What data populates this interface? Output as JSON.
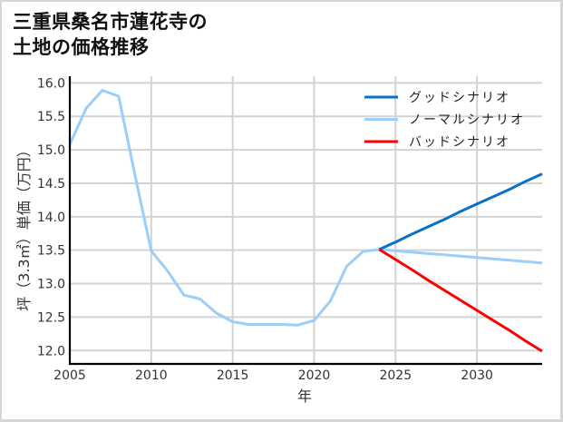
{
  "title": {
    "line1": "三重県桑名市蓮花寺の",
    "line2": "土地の価格推移"
  },
  "chart_data": {
    "type": "line",
    "title": "三重県桑名市蓮花寺の土地の価格推移",
    "xlabel": "年",
    "ylabel": "坪（3.3㎡）単価（万円）",
    "xlim": [
      2005,
      2034
    ],
    "ylim": [
      11.8,
      16.1
    ],
    "xticks": [
      2005,
      2010,
      2015,
      2020,
      2025,
      2030
    ],
    "yticks": [
      12.0,
      12.5,
      13.0,
      13.5,
      14.0,
      14.5,
      15.0,
      15.5,
      16.0
    ],
    "ytick_labels": [
      "12.0",
      "12.5",
      "13.0",
      "13.5",
      "14.0",
      "14.5",
      "15.0",
      "15.5",
      "16.0"
    ],
    "grid": true,
    "grid_color": "#d3d3d3",
    "legend_position": "upper right",
    "series": [
      {
        "name": "ノーマルシナリオ",
        "key": "normal",
        "color": "#9ccefa",
        "x": [
          2005,
          2006,
          2007,
          2008,
          2009,
          2010,
          2011,
          2012,
          2013,
          2014,
          2015,
          2016,
          2017,
          2018,
          2019,
          2020,
          2021,
          2022,
          2023,
          2024,
          2025,
          2026,
          2027,
          2028,
          2029,
          2030,
          2031,
          2032,
          2033,
          2034
        ],
        "values": [
          15.08,
          15.62,
          15.89,
          15.8,
          14.62,
          13.49,
          13.19,
          12.83,
          12.77,
          12.56,
          12.43,
          12.39,
          12.39,
          12.39,
          12.38,
          12.45,
          12.74,
          13.26,
          13.48,
          13.51,
          13.49,
          13.47,
          13.45,
          13.43,
          13.41,
          13.39,
          13.37,
          13.35,
          13.33,
          13.31
        ]
      },
      {
        "name": "グッドシナリオ",
        "key": "good",
        "color": "#0a72c6",
        "x": [
          2024,
          2025,
          2026,
          2027,
          2028,
          2029,
          2030,
          2031,
          2032,
          2033,
          2034
        ],
        "values": [
          13.51,
          13.62,
          13.74,
          13.85,
          13.96,
          14.08,
          14.19,
          14.3,
          14.41,
          14.53,
          14.64
        ]
      },
      {
        "name": "バッドシナリオ",
        "key": "bad",
        "color": "#ff0000",
        "x": [
          2024,
          2025,
          2026,
          2027,
          2028,
          2029,
          2030,
          2031,
          2032,
          2033,
          2034
        ],
        "values": [
          13.51,
          13.36,
          13.21,
          13.05,
          12.9,
          12.75,
          12.6,
          12.45,
          12.3,
          12.14,
          11.99
        ]
      }
    ],
    "legend": [
      {
        "label": "グッドシナリオ",
        "color": "#0a72c6"
      },
      {
        "label": "ノーマルシナリオ",
        "color": "#9ccefa"
      },
      {
        "label": "バッドシナリオ",
        "color": "#ff0000"
      }
    ]
  }
}
